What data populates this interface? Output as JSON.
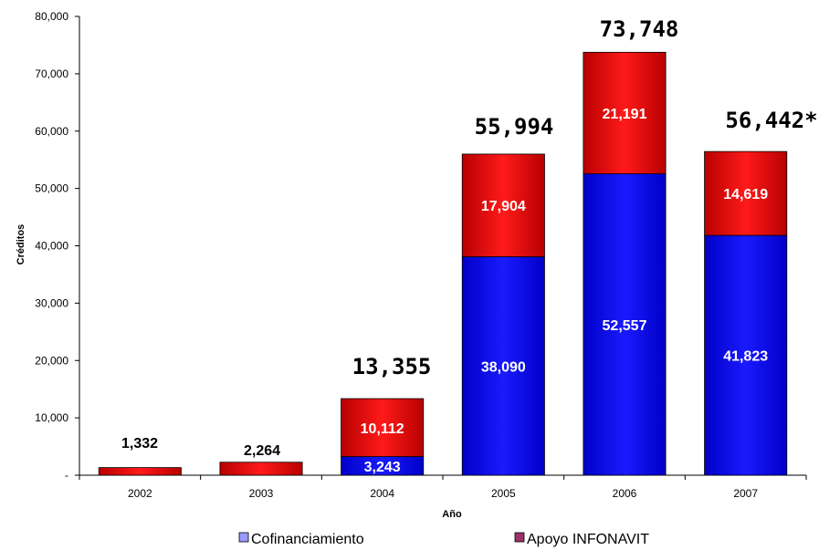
{
  "chart_data": {
    "type": "bar",
    "stacked": true,
    "title": "",
    "xlabel": "Año",
    "ylabel": "Créditos",
    "ylim": [
      0,
      80000
    ],
    "y_ticks": [
      0,
      10000,
      20000,
      30000,
      40000,
      50000,
      60000,
      70000,
      80000
    ],
    "y_tick_labels": [
      "-",
      "10,000",
      "20,000",
      "30,000",
      "40,000",
      "50,000",
      "60,000",
      "70,000",
      "80,000"
    ],
    "categories": [
      "2002",
      "2003",
      "2004",
      "2005",
      "2006",
      "2007"
    ],
    "series": [
      {
        "name": "Cofinanciamiento",
        "color": "#0000ff",
        "values": [
          0,
          0,
          3243,
          38090,
          52557,
          41823
        ],
        "labels": [
          "",
          "",
          "3,243",
          "38,090",
          "52,557",
          "41,823"
        ]
      },
      {
        "name": "Apoyo INFONAVIT",
        "color": "#ff0000",
        "values": [
          1332,
          2264,
          10112,
          17904,
          21191,
          14619
        ],
        "labels": [
          "",
          "",
          "10,112",
          "17,904",
          "21,191",
          "14,619"
        ]
      }
    ],
    "totals": [
      "1,332",
      "2,264",
      "13,355",
      "55,994",
      "73,748",
      "56,442*"
    ],
    "legend": {
      "position": "bottom",
      "items": [
        {
          "label": "Cofinanciamiento",
          "swatch_color": "#9999ff"
        },
        {
          "label": "Apoyo INFONAVIT",
          "swatch_color": "#993366"
        }
      ]
    },
    "grid": false
  }
}
